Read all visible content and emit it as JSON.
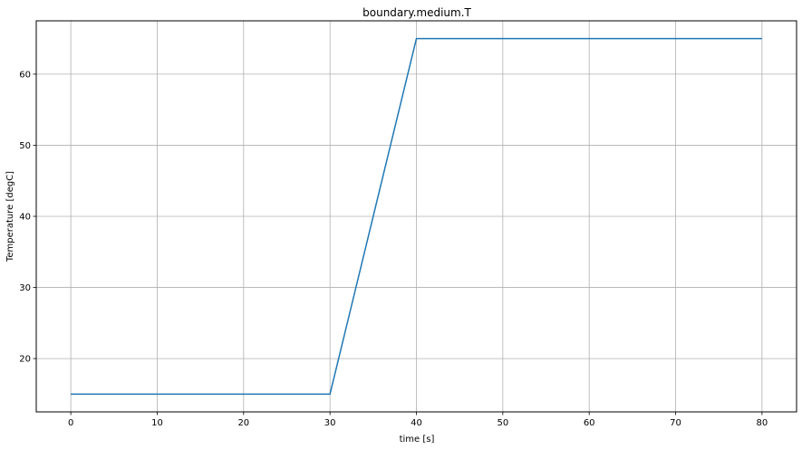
{
  "chart_data": {
    "type": "line",
    "title": "boundary.medium.T",
    "xlabel": "time [s]",
    "ylabel": "Temperature [degC]",
    "xlim": [
      -4,
      84
    ],
    "ylim": [
      12.5,
      67.5
    ],
    "xticks": [
      0,
      10,
      20,
      30,
      40,
      50,
      60,
      70,
      80
    ],
    "yticks": [
      20,
      30,
      40,
      50,
      60
    ],
    "grid": true,
    "series": [
      {
        "color": "#1f77b4",
        "x": [
          0,
          30,
          40,
          80
        ],
        "y": [
          15,
          15,
          65,
          65
        ]
      }
    ]
  }
}
